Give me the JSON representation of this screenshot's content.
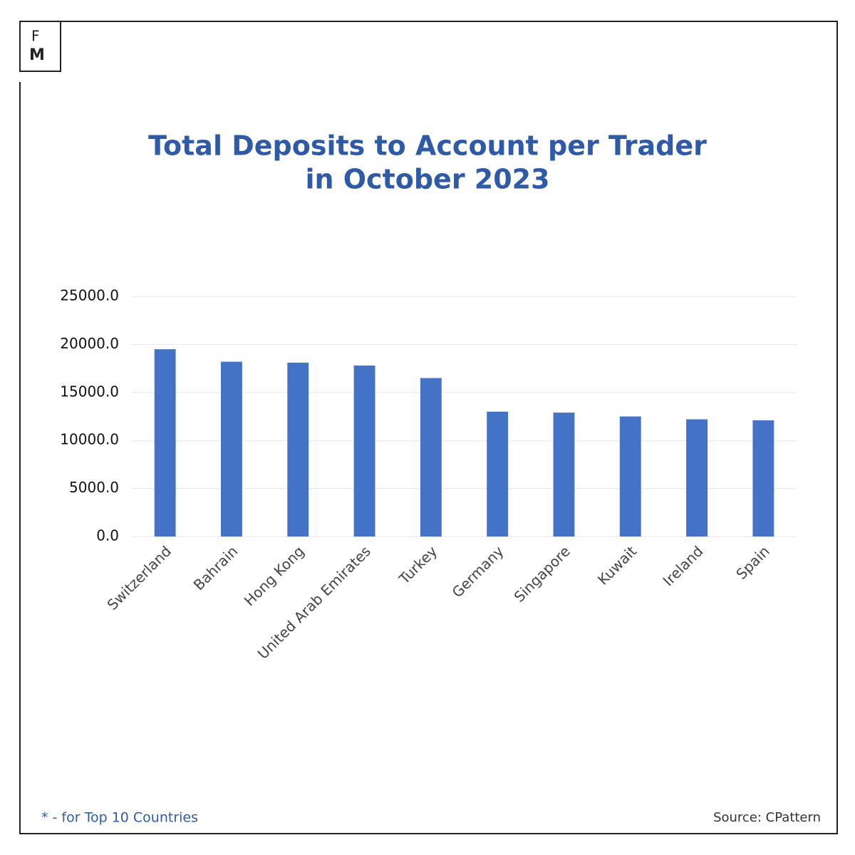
{
  "logo": {
    "top": "F",
    "bottom": "M"
  },
  "chart_data": {
    "type": "bar",
    "title": [
      "Total Deposits to Account per Trader",
      "in October 2023"
    ],
    "categories": [
      "Switzerland",
      "Bahrain",
      "Hong Kong",
      "United Arab Emirates",
      "Turkey",
      "Germany",
      "Singapore",
      "Kuwait",
      "Ireland",
      "Spain"
    ],
    "values": [
      19500,
      18200,
      18100,
      17800,
      16500,
      13000,
      12900,
      12500,
      12200,
      12100
    ],
    "color": "#4472c4",
    "ylim": [
      0,
      25000
    ],
    "yticks": [
      {
        "value": 0,
        "label": "0.0"
      },
      {
        "value": 5000,
        "label": "5000.0"
      },
      {
        "value": 10000,
        "label": "10000.0"
      },
      {
        "value": 15000,
        "label": "15000.0"
      },
      {
        "value": 20000,
        "label": "20000.0"
      },
      {
        "value": 25000,
        "label": "25000.0"
      }
    ],
    "grid": true
  },
  "footnote": "* - for Top 10 Countries",
  "source": "Source: CPattern"
}
